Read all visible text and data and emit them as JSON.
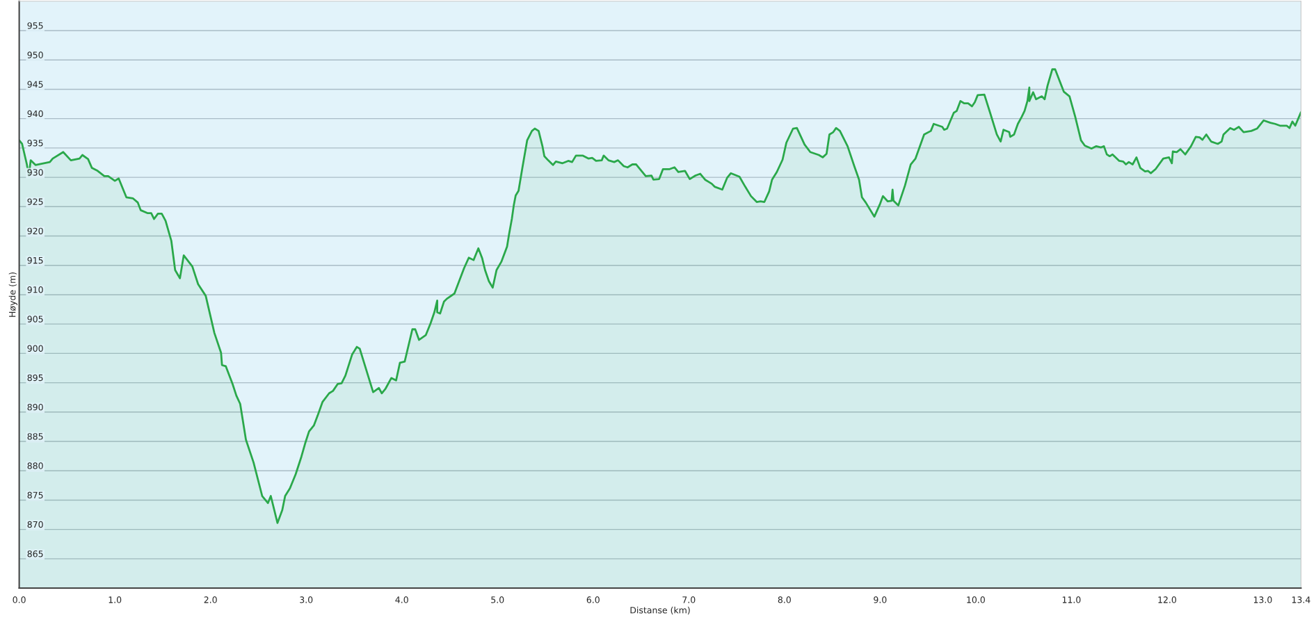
{
  "chart_data": {
    "type": "area",
    "xlabel": "Distanse (km)",
    "ylabel": "Høyde (m)",
    "xlim": [
      0,
      13.4
    ],
    "ylim": [
      860,
      960
    ],
    "xticks": [
      {
        "value": 0,
        "label": "0.0"
      },
      {
        "value": 1,
        "label": "1.0"
      },
      {
        "value": 2,
        "label": "2.0"
      },
      {
        "value": 3,
        "label": "3.0"
      },
      {
        "value": 4,
        "label": "4.0"
      },
      {
        "value": 5,
        "label": "5.0"
      },
      {
        "value": 6,
        "label": "6.0"
      },
      {
        "value": 7,
        "label": "7.0"
      },
      {
        "value": 8,
        "label": "8.0"
      },
      {
        "value": 9,
        "label": "9.0"
      },
      {
        "value": 10,
        "label": "10.0"
      },
      {
        "value": 11,
        "label": "11.0"
      },
      {
        "value": 12,
        "label": "12.0"
      },
      {
        "value": 13,
        "label": "13.0"
      },
      {
        "value": 13.4,
        "label": "13.4"
      }
    ],
    "yticks": [
      865,
      870,
      875,
      880,
      885,
      890,
      895,
      900,
      905,
      910,
      915,
      920,
      925,
      930,
      935,
      940,
      945,
      950,
      955
    ],
    "grid": "y",
    "series": [
      {
        "color": "#2aa84a",
        "x": [
          0.0,
          0.03,
          0.08,
          0.1,
          0.12,
          0.17,
          0.32,
          0.35,
          0.46,
          0.54,
          0.63,
          0.66,
          0.72,
          0.76,
          0.82,
          0.89,
          0.93,
          1.0,
          1.04,
          1.12,
          1.19,
          1.24,
          1.27,
          1.34,
          1.38,
          1.41,
          1.45,
          1.49,
          1.53,
          1.59,
          1.63,
          1.68,
          1.72,
          1.81,
          1.87,
          1.95,
          2.04,
          2.11,
          2.12,
          2.16,
          2.23,
          2.27,
          2.31,
          2.37,
          2.45,
          2.54,
          2.6,
          2.63,
          2.7,
          2.75,
          2.78,
          2.83,
          2.89,
          2.95,
          2.99,
          3.03,
          3.08,
          3.12,
          3.17,
          3.24,
          3.28,
          3.33,
          3.37,
          3.41,
          3.48,
          3.53,
          3.56,
          3.63,
          3.7,
          3.76,
          3.79,
          3.83,
          3.89,
          3.94,
          3.98,
          4.03,
          4.11,
          4.14,
          4.18,
          4.25,
          4.3,
          4.34,
          4.37,
          4.37,
          4.4,
          4.44,
          4.47,
          4.55,
          4.65,
          4.7,
          4.75,
          4.8,
          4.84,
          4.87,
          4.91,
          4.95,
          4.99,
          5.04,
          5.1,
          5.12,
          5.15,
          5.17,
          5.19,
          5.22,
          5.26,
          5.31,
          5.36,
          5.39,
          5.43,
          5.47,
          5.49,
          5.53,
          5.58,
          5.61,
          5.68,
          5.74,
          5.78,
          5.82,
          5.89,
          5.95,
          5.99,
          6.03,
          6.09,
          6.11,
          6.16,
          6.22,
          6.26,
          6.32,
          6.36,
          6.41,
          6.45,
          6.55,
          6.61,
          6.63,
          6.69,
          6.73,
          6.8,
          6.85,
          6.89,
          6.96,
          7.01,
          7.07,
          7.12,
          7.17,
          7.24,
          7.27,
          7.35,
          7.4,
          7.44,
          7.53,
          7.59,
          7.65,
          7.71,
          7.75,
          7.79,
          7.84,
          7.87,
          7.92,
          7.98,
          8.02,
          8.09,
          8.13,
          8.21,
          8.27,
          8.36,
          8.4,
          8.44,
          8.47,
          8.51,
          8.54,
          8.58,
          8.66,
          8.73,
          8.78,
          8.81,
          8.85,
          8.94,
          9.0,
          9.03,
          9.08,
          9.12,
          9.13,
          9.14,
          9.19,
          9.26,
          9.32,
          9.37,
          9.46,
          9.53,
          9.56,
          9.65,
          9.67,
          9.7,
          9.77,
          9.8,
          9.84,
          9.88,
          9.92,
          9.96,
          9.99,
          10.02,
          10.09,
          10.15,
          10.22,
          10.26,
          10.29,
          10.35,
          10.36,
          10.4,
          10.44,
          10.48,
          10.51,
          10.54,
          10.56,
          10.56,
          10.6,
          10.63,
          10.69,
          10.72,
          10.75,
          10.8,
          10.83,
          10.92,
          10.98,
          11.04,
          11.1,
          11.14,
          11.21,
          11.26,
          11.31,
          11.34,
          11.37,
          11.4,
          11.43,
          11.5,
          11.54,
          11.57,
          11.6,
          11.64,
          11.68,
          11.72,
          11.77,
          11.8,
          11.83,
          11.88,
          11.96,
          12.02,
          12.05,
          12.06,
          12.1,
          12.14,
          12.19,
          12.25,
          12.3,
          12.34,
          12.37,
          12.41,
          12.46,
          12.53,
          12.57,
          12.59,
          12.66,
          12.7,
          12.75,
          12.8,
          12.88,
          12.94,
          13.01,
          13.08,
          13.13,
          13.18,
          13.25,
          13.28,
          13.31,
          13.34,
          13.4
        ],
        "values": [
          936.3,
          935.7,
          932.2,
          930.2,
          932.9,
          932.1,
          932.6,
          933.2,
          934.3,
          932.9,
          933.2,
          933.8,
          933.1,
          931.6,
          931.1,
          930.2,
          930.2,
          929.4,
          929.8,
          926.6,
          926.4,
          925.7,
          924.4,
          923.9,
          923.9,
          922.9,
          923.8,
          923.8,
          922.6,
          919.2,
          914.2,
          912.8,
          916.7,
          914.8,
          911.8,
          909.8,
          903.5,
          900.1,
          898.0,
          897.8,
          894.8,
          892.8,
          891.4,
          885.3,
          881.4,
          875.7,
          874.5,
          875.7,
          871.1,
          873.3,
          875.7,
          877.0,
          879.4,
          882.4,
          884.7,
          886.7,
          887.7,
          889.4,
          891.7,
          893.2,
          893.6,
          894.8,
          894.9,
          896.2,
          899.8,
          901.1,
          900.8,
          897.1,
          893.4,
          894.1,
          893.2,
          894.0,
          895.8,
          895.4,
          898.4,
          898.6,
          904.1,
          904.1,
          902.3,
          903.1,
          905.1,
          907.0,
          909.0,
          907.0,
          906.8,
          908.8,
          909.3,
          910.2,
          914.5,
          916.3,
          915.9,
          917.9,
          916.2,
          914.2,
          912.3,
          911.2,
          914.2,
          915.6,
          918.2,
          920.2,
          922.9,
          925.2,
          926.9,
          927.7,
          931.6,
          936.3,
          937.9,
          938.3,
          937.9,
          935.3,
          933.6,
          932.9,
          932.1,
          932.7,
          932.4,
          932.8,
          932.6,
          933.7,
          933.7,
          933.2,
          933.3,
          932.8,
          932.9,
          933.7,
          932.9,
          932.6,
          932.9,
          931.9,
          931.7,
          932.2,
          932.2,
          930.2,
          930.3,
          929.6,
          929.7,
          931.4,
          931.4,
          931.7,
          930.9,
          931.1,
          929.7,
          930.3,
          930.6,
          929.6,
          928.9,
          928.4,
          927.9,
          929.9,
          930.7,
          930.1,
          928.4,
          926.8,
          925.8,
          925.9,
          925.8,
          927.6,
          929.6,
          930.9,
          933.0,
          935.9,
          938.3,
          938.4,
          935.6,
          934.3,
          933.8,
          933.4,
          934.0,
          937.3,
          937.7,
          938.4,
          937.9,
          935.3,
          931.9,
          929.6,
          926.6,
          925.7,
          923.3,
          925.5,
          926.8,
          925.9,
          926.0,
          927.9,
          926.0,
          925.2,
          928.6,
          932.2,
          933.2,
          937.3,
          937.9,
          939.1,
          938.6,
          938.1,
          938.3,
          941.0,
          941.3,
          943.0,
          942.6,
          942.6,
          942.1,
          942.8,
          944.0,
          944.1,
          941.0,
          937.3,
          936.1,
          938.1,
          937.7,
          936.9,
          937.3,
          939.1,
          940.3,
          941.3,
          943.0,
          945.3,
          943.0,
          944.5,
          943.3,
          943.8,
          943.3,
          945.6,
          948.4,
          948.4,
          944.6,
          943.8,
          940.3,
          936.3,
          935.4,
          934.9,
          935.3,
          935.1,
          935.3,
          933.9,
          933.6,
          933.9,
          932.8,
          932.7,
          932.2,
          932.6,
          932.2,
          933.4,
          931.6,
          931.0,
          931.1,
          930.7,
          931.4,
          933.2,
          933.4,
          932.4,
          934.4,
          934.3,
          934.8,
          933.9,
          935.3,
          936.9,
          936.8,
          936.4,
          937.3,
          936.1,
          935.7,
          936.1,
          937.3,
          938.4,
          938.1,
          938.6,
          937.7,
          937.9,
          938.3,
          939.7,
          939.3,
          939.1,
          938.8,
          938.8,
          938.4,
          939.5,
          938.8,
          941.1
        ]
      }
    ]
  }
}
